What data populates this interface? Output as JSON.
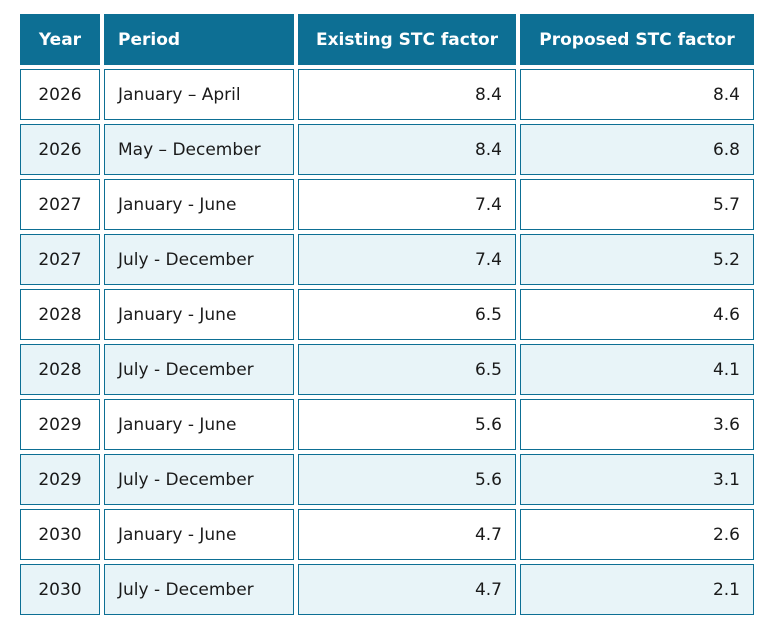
{
  "colors": {
    "accent_teal": "#0d6f94",
    "header_text": "#ffffff",
    "cell_border": "#0d6f94",
    "row_bg": "#ffffff",
    "row_alt_bg": "#e8f4f8",
    "body_text": "#1a1a1a",
    "page_bg": "#ffffff"
  },
  "chart_data": {
    "type": "table",
    "columns": [
      {
        "key": "year",
        "label": "Year",
        "align": "center",
        "header_align": "center"
      },
      {
        "key": "period",
        "label": "Period",
        "align": "left",
        "header_align": "left"
      },
      {
        "key": "existing",
        "label": "Existing STC factor",
        "align": "right",
        "header_align": "center"
      },
      {
        "key": "proposed",
        "label": "Proposed STC factor",
        "align": "right",
        "header_align": "center"
      }
    ],
    "rows": [
      {
        "year": "2026",
        "period": "January – April",
        "existing": "8.4",
        "proposed": "8.4"
      },
      {
        "year": "2026",
        "period": "May – December",
        "existing": "8.4",
        "proposed": "6.8"
      },
      {
        "year": "2027",
        "period": "January - June",
        "existing": "7.4",
        "proposed": "5.7"
      },
      {
        "year": "2027",
        "period": "July - December",
        "existing": "7.4",
        "proposed": "5.2"
      },
      {
        "year": "2028",
        "period": "January - June",
        "existing": "6.5",
        "proposed": "4.6"
      },
      {
        "year": "2028",
        "period": "July - December",
        "existing": "6.5",
        "proposed": "4.1"
      },
      {
        "year": "2029",
        "period": "January - June",
        "existing": "5.6",
        "proposed": "3.6"
      },
      {
        "year": "2029",
        "period": "July - December",
        "existing": "5.6",
        "proposed": "3.1"
      },
      {
        "year": "2030",
        "period": "January - June",
        "existing": "4.7",
        "proposed": "2.6"
      },
      {
        "year": "2030",
        "period": "July - December",
        "existing": "4.7",
        "proposed": "2.1"
      }
    ],
    "existing_series": {
      "name": "Existing STC factor",
      "values": [
        8.4,
        8.4,
        7.4,
        7.4,
        6.5,
        6.5,
        5.6,
        5.6,
        4.7,
        4.7
      ]
    },
    "proposed_series": {
      "name": "Proposed STC factor",
      "values": [
        8.4,
        6.8,
        5.7,
        5.2,
        4.6,
        4.1,
        3.6,
        3.1,
        2.6,
        2.1
      ]
    }
  }
}
